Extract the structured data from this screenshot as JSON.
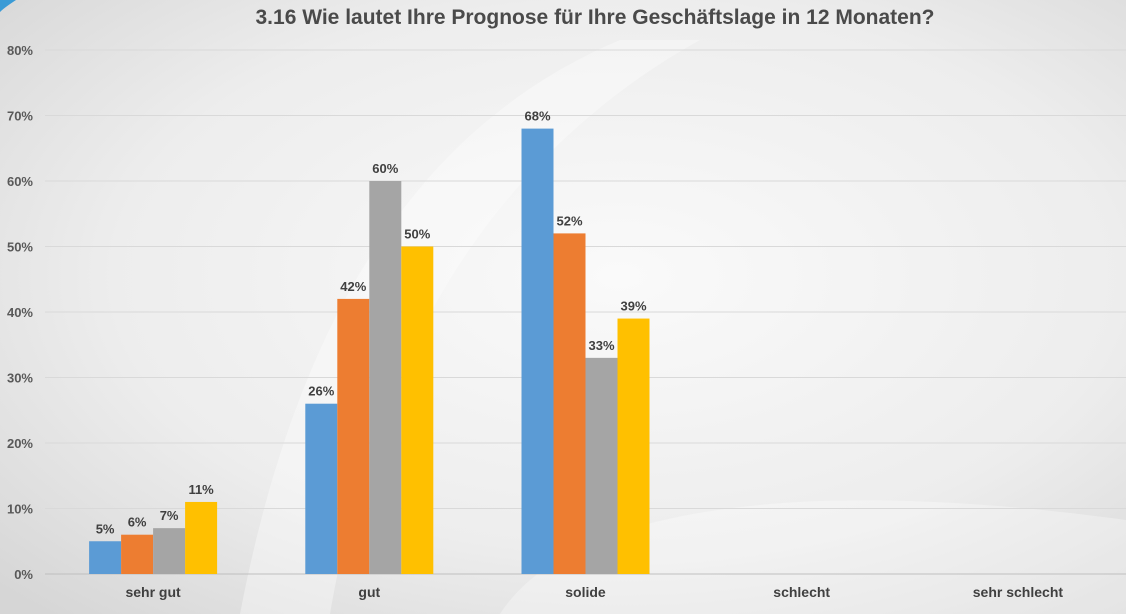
{
  "chart_data": {
    "type": "bar",
    "title": "3.16 Wie lautet Ihre Prognose für Ihre Geschäftslage in 12 Monaten?",
    "categories": [
      "sehr gut",
      "gut",
      "solide",
      "schlecht",
      "sehr schlecht"
    ],
    "series": [
      {
        "color": "#5b9bd5",
        "values": [
          5,
          26,
          68,
          null,
          null
        ],
        "labels": [
          "5%",
          "26%",
          "68%",
          null,
          null
        ]
      },
      {
        "color": "#ed7d31",
        "values": [
          6,
          42,
          52,
          null,
          null
        ],
        "labels": [
          "6%",
          "42%",
          "52%",
          null,
          null
        ]
      },
      {
        "color": "#a5a5a5",
        "values": [
          7,
          60,
          33,
          null,
          null
        ],
        "labels": [
          "7%",
          "60%",
          "33%",
          null,
          null
        ]
      },
      {
        "color": "#ffc000",
        "values": [
          11,
          50,
          39,
          null,
          null
        ],
        "labels": [
          "11%",
          "50%",
          "39%",
          null,
          null
        ]
      }
    ],
    "y_ticks": [
      "0%",
      "10%",
      "20%",
      "30%",
      "40%",
      "50%",
      "60%",
      "70%",
      "80%"
    ],
    "ylim": [
      0,
      80
    ],
    "grid": true,
    "legend": "none"
  }
}
